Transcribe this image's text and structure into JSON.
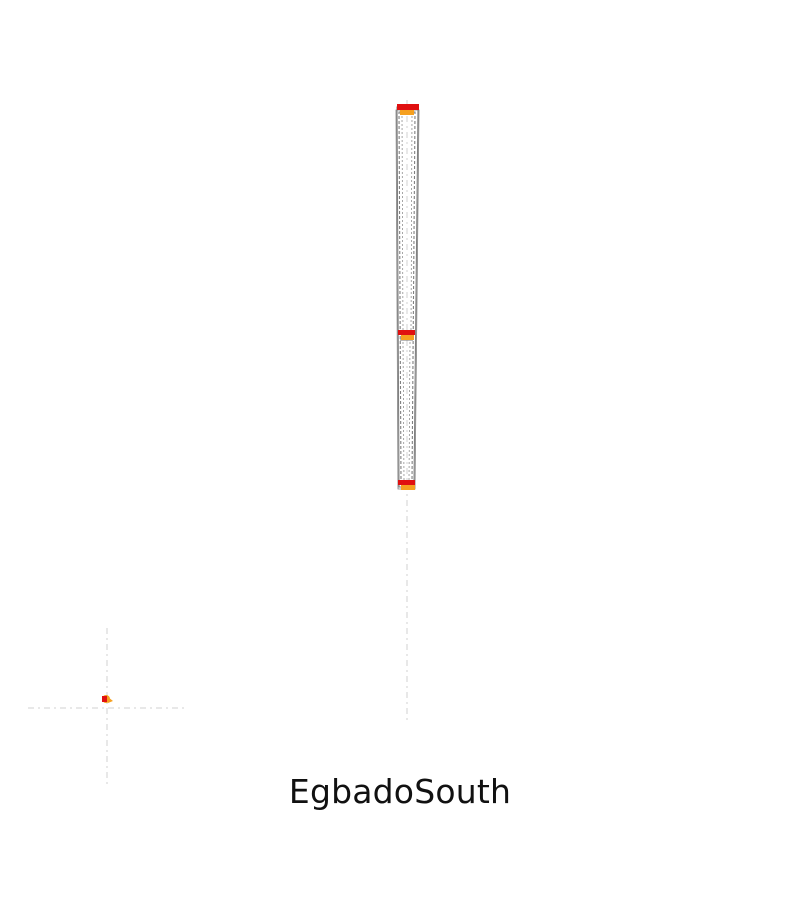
{
  "map": {
    "label": "EgbadoSouth",
    "colors": {
      "background": "#ffffff",
      "boundary": "#808080",
      "guide_line": "#d9d9d9",
      "marker_primary": "#e01010",
      "marker_secondary": "#f5a020"
    }
  }
}
